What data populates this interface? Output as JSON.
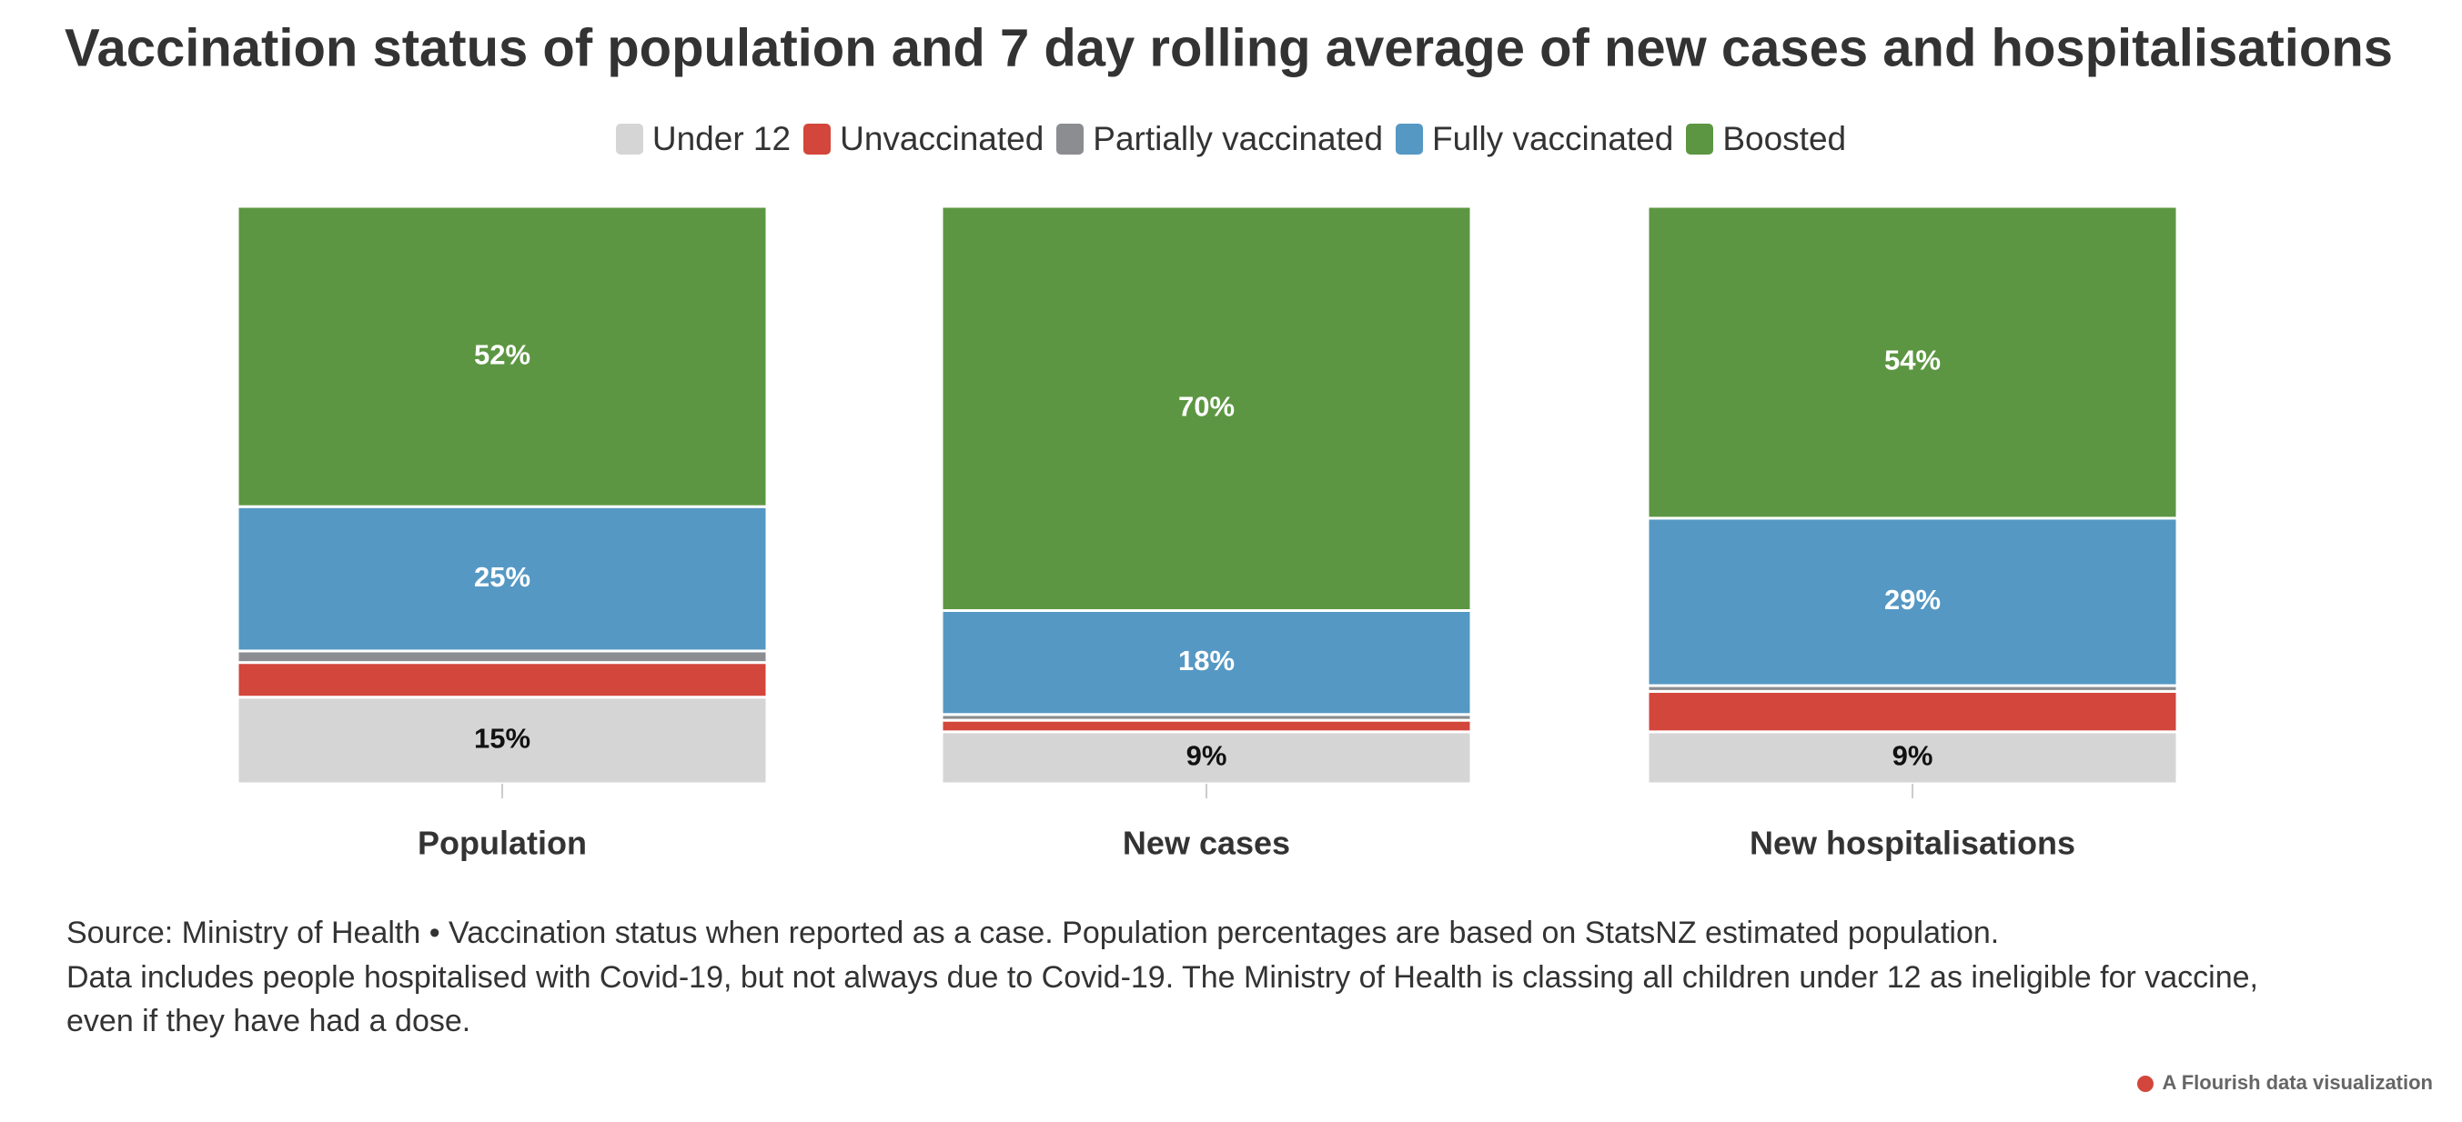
{
  "chart_data": {
    "type": "stacked_bar",
    "title": "Vaccination status of population and 7 day rolling average of new cases and hospitalisations",
    "categories": [
      "Population",
      "New cases",
      "New hospitalisations"
    ],
    "ylim": [
      0,
      100
    ],
    "legend": "top",
    "series": [
      {
        "name": "Under 12",
        "color": "#d5d5d5",
        "values": [
          15,
          9,
          9
        ],
        "value_labels": [
          "15%",
          "9%",
          "9%"
        ]
      },
      {
        "name": "Unvaccinated",
        "color": "#d2463c",
        "values": [
          6,
          2,
          7
        ],
        "value_labels": [
          null,
          null,
          null
        ]
      },
      {
        "name": "Partially vaccinated",
        "color": "#8c8d91",
        "values": [
          2,
          1,
          1
        ],
        "value_labels": [
          null,
          null,
          null
        ]
      },
      {
        "name": "Fully vaccinated",
        "color": "#5598c4",
        "values": [
          25,
          18,
          29
        ],
        "value_labels": [
          "25%",
          "18%",
          "29%"
        ]
      },
      {
        "name": "Boosted",
        "color": "#5c9642",
        "values": [
          52,
          70,
          54
        ],
        "value_labels": [
          "52%",
          "70%",
          "54%"
        ]
      }
    ],
    "footnote": [
      "Source: Ministry of Health • Vaccination status when reported as a case. Population percentages are based on StatsNZ estimated population.",
      "Data includes people hospitalised with Covid-19, but not always due to Covid-19. The Ministry of Health is classing all children under 12 as ineligible for vaccine,",
      "even if they have had a dose."
    ],
    "credit": "A Flourish data visualization"
  }
}
